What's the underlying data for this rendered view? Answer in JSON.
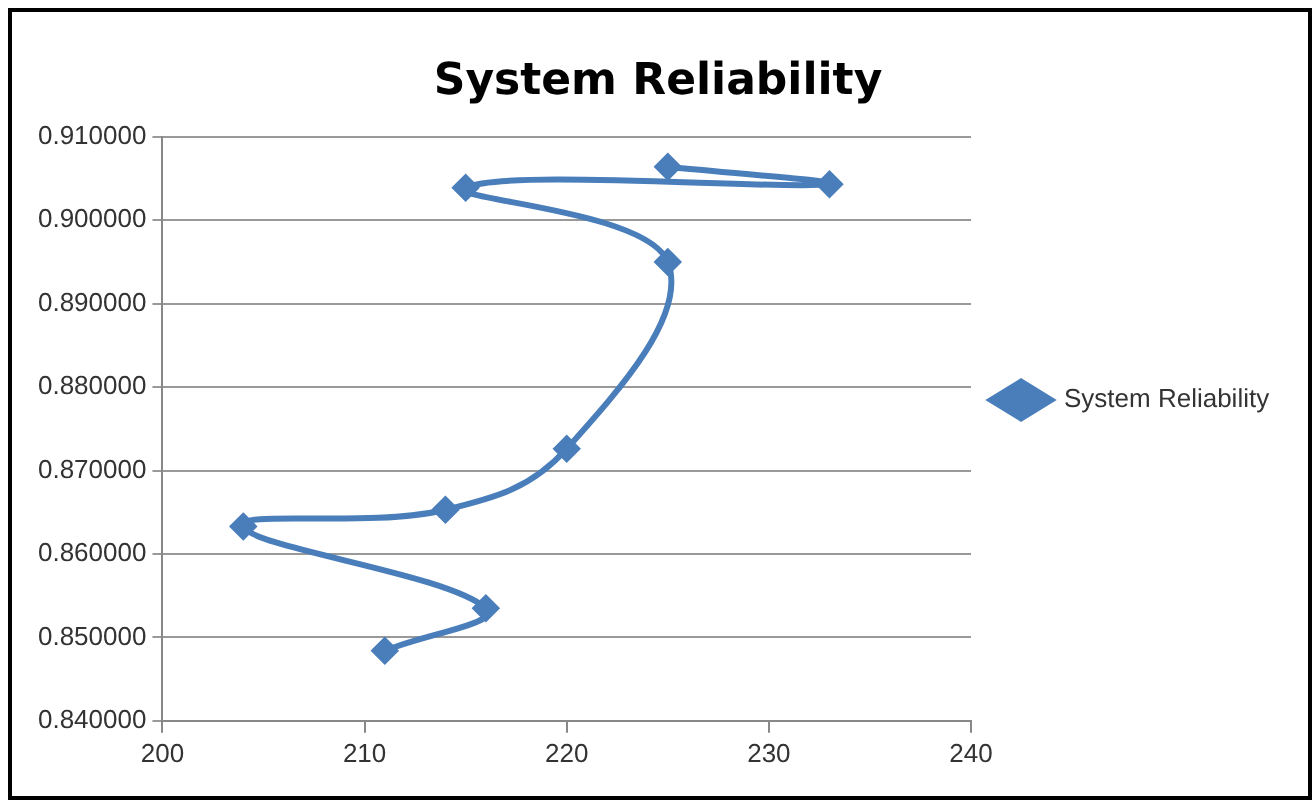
{
  "chart_data": {
    "type": "line",
    "title": "System Reliability",
    "x": [
      211,
      216,
      204,
      214,
      220,
      225,
      215,
      233,
      225
    ],
    "series": [
      {
        "name": "System Reliability",
        "color": "#4a7ebb",
        "values": [
          0.8484,
          0.8535,
          0.8633,
          0.8653,
          0.8726,
          0.895,
          0.9039,
          0.9043,
          0.9064
        ]
      }
    ],
    "xlim": [
      200,
      240
    ],
    "xticks": [
      200,
      210,
      220,
      230,
      240
    ],
    "ylim": [
      0.84,
      0.91
    ],
    "yticks": [
      {
        "value": 0.84,
        "label": "0.840000"
      },
      {
        "value": 0.85,
        "label": "0.850000"
      },
      {
        "value": 0.86,
        "label": "0.860000"
      },
      {
        "value": 0.87,
        "label": "0.870000"
      },
      {
        "value": 0.88,
        "label": "0.880000"
      },
      {
        "value": 0.89,
        "label": "0.890000"
      },
      {
        "value": 0.9,
        "label": "0.900000"
      },
      {
        "value": 0.91,
        "label": "0.910000"
      }
    ],
    "grid": "y",
    "legend": "right",
    "marker": "diamond",
    "line_style": "solid"
  }
}
